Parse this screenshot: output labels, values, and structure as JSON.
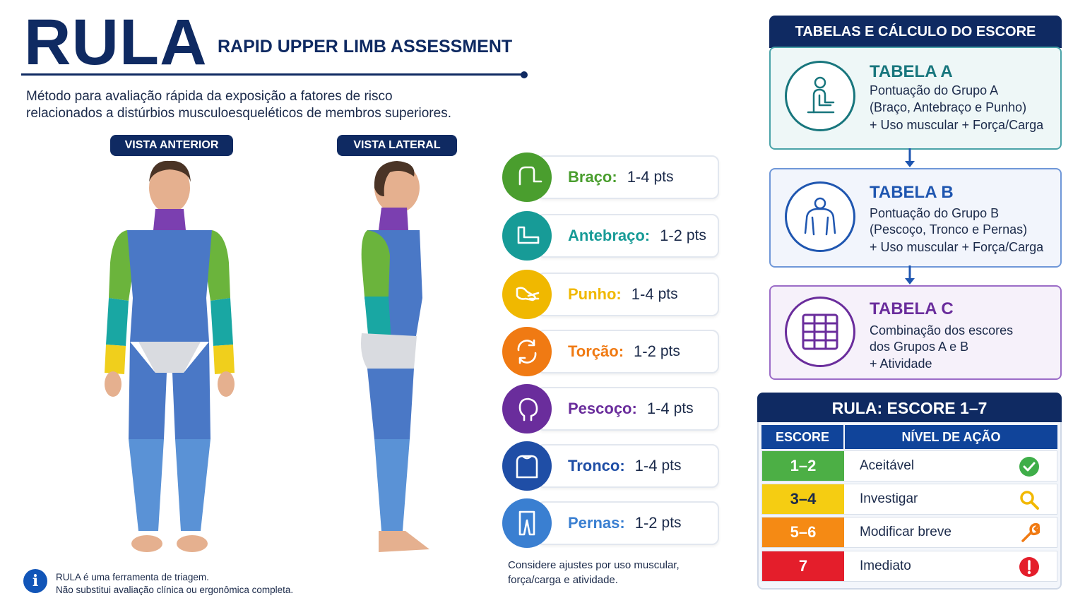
{
  "header": {
    "title": "RULA",
    "subtitle": "RAPID UPPER LIMB ASSESSMENT",
    "intro_line1": "Método para avaliação rápida da exposição a fatores de risco",
    "intro_line2": "relacionados a distúrbios musculoesqueléticos de membros superiores."
  },
  "views": {
    "anterior": "VISTA ANTERIOR",
    "lateral": "VISTA LATERAL"
  },
  "body_colors": {
    "neck": "#7b3fb0",
    "trunk": "#4a78c6",
    "arm": "#6bb43c",
    "forearm": "#19a7a3",
    "wrist": "#f0cf1c",
    "legs": "#5a92d6",
    "skin": "#e5b08f"
  },
  "scales": [
    {
      "name": "Braço:",
      "value": "1-4",
      "unit": "pts",
      "color": "#4a9e2e",
      "icon": "arm-icon"
    },
    {
      "name": "Antebraço:",
      "value": "1-2",
      "unit": "pts",
      "color": "#179b97",
      "icon": "forearm-icon"
    },
    {
      "name": "Punho:",
      "value": "1-4",
      "unit": "pts",
      "color": "#f0b800",
      "icon": "wrist-icon"
    },
    {
      "name": "Torção:",
      "value": "1-2",
      "unit": "pts",
      "color": "#f07a13",
      "icon": "rotation-icon"
    },
    {
      "name": "Pescoço:",
      "value": "1-4",
      "unit": "pts",
      "color": "#6a2d9c",
      "icon": "neck-icon"
    },
    {
      "name": "Tronco:",
      "value": "1-4",
      "unit": "pts",
      "color": "#1f4ea6",
      "icon": "trunk-icon"
    },
    {
      "name": "Pernas:",
      "value": "1-2",
      "unit": "pts",
      "color": "#3a7fd1",
      "icon": "legs-icon"
    }
  ],
  "note": {
    "line1": "Considere ajustes por uso muscular,",
    "line2": "força/carga e atividade."
  },
  "tables": {
    "heading": "TABELAS E CÁLCULO DO ESCORE",
    "a": {
      "title": "TABELA A",
      "line1": "Pontuação do Grupo A",
      "line2": "(Braço, Antebraço e Punho)",
      "line3": "+ Uso muscular + Força/Carga",
      "color": "#18767d",
      "icon": "seated-worker-icon"
    },
    "b": {
      "title": "TABELA B",
      "line1": "Pontuação do Grupo B",
      "line2": "(Pescoço, Tronco e Pernas)",
      "line3": "+ Uso muscular + Força/Carga",
      "color": "#1f56b0",
      "icon": "torso-icon"
    },
    "c": {
      "title": "TABELA C",
      "line1": "Combinação dos escores",
      "line2": "dos Grupos A e B",
      "line3": "+ Atividade",
      "color": "#6a2d9c",
      "icon": "grid-table-icon"
    }
  },
  "score": {
    "heading": "RULA: ESCORE 1–7",
    "col_score": "ESCORE",
    "col_action": "NÍVEL DE AÇÃO",
    "rows": [
      {
        "score": "1–2",
        "action": "Aceitável",
        "color": "#4caf45",
        "text_color": "#ffffff",
        "icon": "check-icon"
      },
      {
        "score": "3–4",
        "action": "Investigar",
        "color": "#f5cd12",
        "text_color": "#1b2a4a",
        "icon": "magnifier-icon"
      },
      {
        "score": "5–6",
        "action": "Modificar breve",
        "color": "#f58a14",
        "text_color": "#ffffff",
        "icon": "wrench-icon"
      },
      {
        "score": "7",
        "action": "Imediato",
        "color": "#e41e2b",
        "text_color": "#ffffff",
        "icon": "alert-icon"
      }
    ]
  },
  "footer": {
    "line1": "RULA é uma ferramenta de triagem.",
    "line2": "Não substitui avaliação clínica ou ergonômica completa."
  }
}
